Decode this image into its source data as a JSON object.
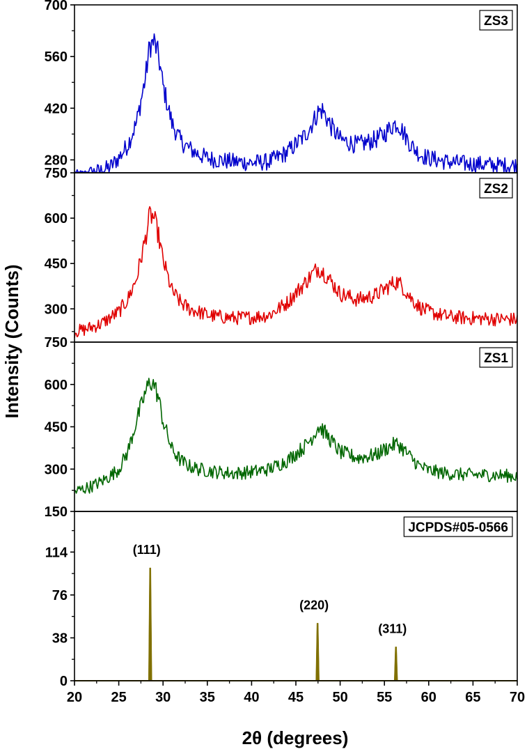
{
  "chart_data": {
    "type": "line",
    "xlabel": "2θ (degrees)",
    "ylabel": "Intensity (Counts)",
    "xlim": [
      20,
      70
    ],
    "x_ticks": [
      20,
      25,
      30,
      35,
      40,
      45,
      50,
      55,
      60,
      65,
      70
    ],
    "grid": false,
    "panels": [
      {
        "label": "ZS3",
        "color": "#0000cc",
        "ylim": [
          245,
          700
        ],
        "y_ticks": [
          280,
          420,
          560,
          700
        ],
        "series": {
          "x": [
            20,
            21,
            22,
            23,
            24,
            25,
            26,
            27,
            28,
            28.5,
            29,
            29.5,
            30,
            31,
            32,
            33,
            34,
            35,
            36,
            38,
            40,
            42,
            44,
            46,
            47,
            47.5,
            48,
            49,
            50,
            52,
            54,
            55,
            56,
            56.5,
            57,
            58,
            59,
            60,
            62,
            64,
            66,
            68,
            70
          ],
          "y": [
            230,
            235,
            245,
            250,
            260,
            285,
            320,
            380,
            500,
            590,
            600,
            560,
            480,
            380,
            330,
            310,
            295,
            285,
            280,
            275,
            272,
            275,
            300,
            345,
            385,
            410,
            415,
            370,
            335,
            320,
            335,
            350,
            375,
            380,
            360,
            320,
            295,
            285,
            275,
            270,
            268,
            265,
            265
          ]
        }
      },
      {
        "label": "ZS2",
        "color": "#e00000",
        "ylim": [
          190,
          750
        ],
        "y_ticks": [
          300,
          450,
          600,
          750
        ],
        "series": {
          "x": [
            20,
            21,
            22,
            23,
            24,
            25,
            26,
            27,
            28,
            28.5,
            29,
            29.5,
            30,
            31,
            32,
            33,
            34,
            35,
            36,
            38,
            40,
            42,
            44,
            46,
            47,
            47.5,
            48,
            49,
            50,
            52,
            54,
            55,
            56,
            56.5,
            57,
            58,
            59,
            60,
            62,
            64,
            66,
            68,
            70
          ],
          "y": [
            225,
            230,
            240,
            250,
            270,
            290,
            330,
            400,
            530,
            610,
            600,
            540,
            460,
            360,
            320,
            300,
            290,
            280,
            275,
            270,
            272,
            280,
            320,
            385,
            420,
            435,
            425,
            390,
            350,
            330,
            345,
            365,
            385,
            390,
            375,
            335,
            305,
            290,
            275,
            270,
            268,
            266,
            265
          ]
        }
      },
      {
        "label": "ZS1",
        "color": "#006600",
        "ylim": [
          150,
          750
        ],
        "y_ticks": [
          150,
          300,
          450,
          600,
          750
        ],
        "series": {
          "x": [
            20,
            21,
            22,
            23,
            24,
            25,
            26,
            27,
            28,
            28.5,
            29,
            29.5,
            30,
            31,
            32,
            33,
            34,
            35,
            36,
            38,
            40,
            42,
            44,
            46,
            47,
            47.5,
            48,
            49,
            50,
            52,
            54,
            55,
            56,
            56.5,
            57,
            58,
            59,
            60,
            62,
            64,
            66,
            68,
            70
          ],
          "y": [
            220,
            230,
            240,
            255,
            275,
            300,
            360,
            470,
            570,
            610,
            600,
            550,
            470,
            370,
            330,
            310,
            300,
            295,
            290,
            285,
            290,
            300,
            330,
            380,
            420,
            450,
            440,
            400,
            360,
            340,
            350,
            370,
            385,
            390,
            375,
            340,
            310,
            295,
            285,
            280,
            280,
            278,
            275
          ]
        }
      },
      {
        "label": "JCPDS#05-0566",
        "color": "#807000",
        "ylim": [
          0,
          150
        ],
        "y_ticks": [
          0,
          38,
          76,
          114
        ],
        "series": {
          "type": "stick",
          "x": [
            28.55,
            47.45,
            56.3
          ],
          "y": [
            100,
            51,
            30
          ]
        },
        "annotations": [
          {
            "text": "(111)",
            "x": 28.55,
            "y": 100
          },
          {
            "text": "(220)",
            "x": 47.45,
            "y": 51
          },
          {
            "text": "(311)",
            "x": 56.3,
            "y": 30
          }
        ]
      }
    ]
  }
}
